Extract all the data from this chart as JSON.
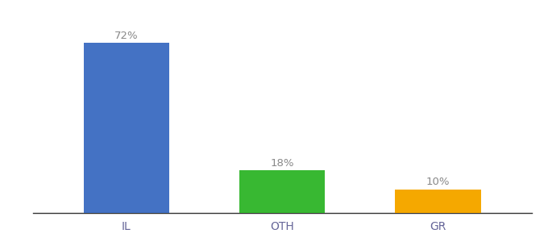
{
  "categories": [
    "IL",
    "OTH",
    "GR"
  ],
  "values": [
    72,
    18,
    10
  ],
  "bar_colors": [
    "#4472c4",
    "#38b832",
    "#f5a800"
  ],
  "labels": [
    "72%",
    "18%",
    "10%"
  ],
  "ylim": [
    0,
    82
  ],
  "background_color": "#ffffff",
  "bar_width": 0.55,
  "label_fontsize": 9.5,
  "tick_fontsize": 10,
  "label_color": "#888888",
  "tick_color": "#666699"
}
